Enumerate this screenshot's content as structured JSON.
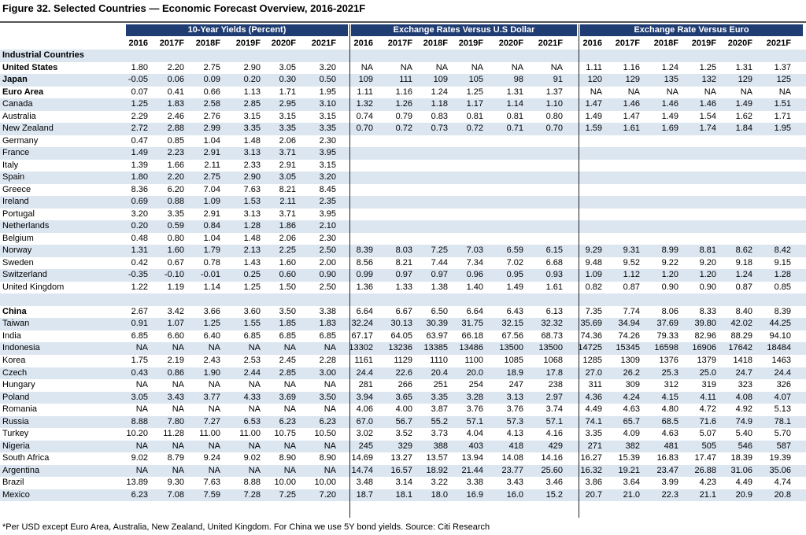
{
  "title": "Figure 32. Selected Countries — Economic Forecast Overview, 2016-2021F",
  "groups": [
    "10-Year Yields (Percent)",
    "Exchange Rates Versus U.S Dollar",
    "Exchange Rate Versus Euro"
  ],
  "years": [
    "2016",
    "2017F",
    "2018F",
    "2019F",
    "2020F",
    "2021F"
  ],
  "rows": [
    {
      "label": "Industrial Countries",
      "bold": true,
      "section": true,
      "values": []
    },
    {
      "label": "United States",
      "bold": true,
      "values": [
        "1.80",
        "2.20",
        "2.75",
        "2.90",
        "3.05",
        "3.20",
        "NA",
        "NA",
        "NA",
        "NA",
        "NA",
        "NA",
        "1.11",
        "1.16",
        "1.24",
        "1.25",
        "1.31",
        "1.37"
      ]
    },
    {
      "label": "Japan",
      "bold": true,
      "values": [
        "-0.05",
        "0.06",
        "0.09",
        "0.20",
        "0.30",
        "0.50",
        "109",
        "111",
        "109",
        "105",
        "98",
        "91",
        "120",
        "129",
        "135",
        "132",
        "129",
        "125"
      ]
    },
    {
      "label": "Euro Area",
      "bold": true,
      "values": [
        "0.07",
        "0.41",
        "0.66",
        "1.13",
        "1.71",
        "1.95",
        "1.11",
        "1.16",
        "1.24",
        "1.25",
        "1.31",
        "1.37",
        "NA",
        "NA",
        "NA",
        "NA",
        "NA",
        "NA"
      ]
    },
    {
      "label": "Canada",
      "values": [
        "1.25",
        "1.83",
        "2.58",
        "2.85",
        "2.95",
        "3.10",
        "1.32",
        "1.26",
        "1.18",
        "1.17",
        "1.14",
        "1.10",
        "1.47",
        "1.46",
        "1.46",
        "1.46",
        "1.49",
        "1.51"
      ]
    },
    {
      "label": "Australia",
      "values": [
        "2.29",
        "2.46",
        "2.76",
        "3.15",
        "3.15",
        "3.15",
        "0.74",
        "0.79",
        "0.83",
        "0.81",
        "0.81",
        "0.80",
        "1.49",
        "1.47",
        "1.49",
        "1.54",
        "1.62",
        "1.71"
      ]
    },
    {
      "label": "New Zealand",
      "values": [
        "2.72",
        "2.88",
        "2.99",
        "3.35",
        "3.35",
        "3.35",
        "0.70",
        "0.72",
        "0.73",
        "0.72",
        "0.71",
        "0.70",
        "1.59",
        "1.61",
        "1.69",
        "1.74",
        "1.84",
        "1.95"
      ]
    },
    {
      "label": "Germany",
      "values": [
        "0.47",
        "0.85",
        "1.04",
        "1.48",
        "2.06",
        "2.30"
      ]
    },
    {
      "label": "France",
      "values": [
        "1.49",
        "2.23",
        "2.91",
        "3.13",
        "3.71",
        "3.95"
      ]
    },
    {
      "label": "Italy",
      "values": [
        "1.39",
        "1.66",
        "2.11",
        "2.33",
        "2.91",
        "3.15"
      ]
    },
    {
      "label": "Spain",
      "values": [
        "1.80",
        "2.20",
        "2.75",
        "2.90",
        "3.05",
        "3.20"
      ]
    },
    {
      "label": "Greece",
      "values": [
        "8.36",
        "6.20",
        "7.04",
        "7.63",
        "8.21",
        "8.45"
      ]
    },
    {
      "label": "Ireland",
      "values": [
        "0.69",
        "0.88",
        "1.09",
        "1.53",
        "2.11",
        "2.35"
      ]
    },
    {
      "label": "Portugal",
      "values": [
        "3.20",
        "3.35",
        "2.91",
        "3.13",
        "3.71",
        "3.95"
      ]
    },
    {
      "label": "Netherlands",
      "values": [
        "0.20",
        "0.59",
        "0.84",
        "1.28",
        "1.86",
        "2.10"
      ]
    },
    {
      "label": "Belgium",
      "values": [
        "0.48",
        "0.80",
        "1.04",
        "1.48",
        "2.06",
        "2.30"
      ]
    },
    {
      "label": "Norway",
      "values": [
        "1.31",
        "1.60",
        "1.79",
        "2.13",
        "2.25",
        "2.50",
        "8.39",
        "8.03",
        "7.25",
        "7.03",
        "6.59",
        "6.15",
        "9.29",
        "9.31",
        "8.99",
        "8.81",
        "8.62",
        "8.42"
      ]
    },
    {
      "label": "Sweden",
      "values": [
        "0.42",
        "0.67",
        "0.78",
        "1.43",
        "1.60",
        "2.00",
        "8.56",
        "8.21",
        "7.44",
        "7.34",
        "7.02",
        "6.68",
        "9.48",
        "9.52",
        "9.22",
        "9.20",
        "9.18",
        "9.15"
      ]
    },
    {
      "label": "Switzerland",
      "values": [
        "-0.35",
        "-0.10",
        "-0.01",
        "0.25",
        "0.60",
        "0.90",
        "0.99",
        "0.97",
        "0.97",
        "0.96",
        "0.95",
        "0.93",
        "1.09",
        "1.12",
        "1.20",
        "1.20",
        "1.24",
        "1.28"
      ]
    },
    {
      "label": "United Kingdom",
      "values": [
        "1.22",
        "1.19",
        "1.14",
        "1.25",
        "1.50",
        "2.50",
        "1.36",
        "1.33",
        "1.38",
        "1.40",
        "1.49",
        "1.61",
        "0.82",
        "0.87",
        "0.90",
        "0.90",
        "0.87",
        "0.85"
      ]
    },
    {
      "label": "",
      "spacer": true,
      "values": []
    },
    {
      "label": "China",
      "bold": true,
      "values": [
        "2.67",
        "3.42",
        "3.66",
        "3.60",
        "3.50",
        "3.38",
        "6.64",
        "6.67",
        "6.50",
        "6.64",
        "6.43",
        "6.13",
        "7.35",
        "7.74",
        "8.06",
        "8.33",
        "8.40",
        "8.39"
      ]
    },
    {
      "label": "Taiwan",
      "values": [
        "0.91",
        "1.07",
        "1.25",
        "1.55",
        "1.85",
        "1.83",
        "32.24",
        "30.13",
        "30.39",
        "31.75",
        "32.15",
        "32.32",
        "35.69",
        "34.94",
        "37.69",
        "39.80",
        "42.02",
        "44.25"
      ]
    },
    {
      "label": "India",
      "values": [
        "6.85",
        "6.60",
        "6.40",
        "6.85",
        "6.85",
        "6.85",
        "67.17",
        "64.05",
        "63.97",
        "66.18",
        "67.56",
        "68.73",
        "74.36",
        "74.26",
        "79.33",
        "82.96",
        "88.29",
        "94.10"
      ]
    },
    {
      "label": "Indonesia",
      "values": [
        "NA",
        "NA",
        "NA",
        "NA",
        "NA",
        "NA",
        "13302",
        "13236",
        "13385",
        "13486",
        "13500",
        "13500",
        "14725",
        "15345",
        "16598",
        "16906",
        "17642",
        "18484"
      ]
    },
    {
      "label": "Korea",
      "values": [
        "1.75",
        "2.19",
        "2.43",
        "2.53",
        "2.45",
        "2.28",
        "1161",
        "1129",
        "1110",
        "1100",
        "1085",
        "1068",
        "1285",
        "1309",
        "1376",
        "1379",
        "1418",
        "1463"
      ]
    },
    {
      "label": "Czech",
      "values": [
        "0.43",
        "0.86",
        "1.90",
        "2.44",
        "2.85",
        "3.00",
        "24.4",
        "22.6",
        "20.4",
        "20.0",
        "18.9",
        "17.8",
        "27.0",
        "26.2",
        "25.3",
        "25.0",
        "24.7",
        "24.4"
      ]
    },
    {
      "label": "Hungary",
      "values": [
        "NA",
        "NA",
        "NA",
        "NA",
        "NA",
        "NA",
        "281",
        "266",
        "251",
        "254",
        "247",
        "238",
        "311",
        "309",
        "312",
        "319",
        "323",
        "326"
      ]
    },
    {
      "label": "Poland",
      "values": [
        "3.05",
        "3.43",
        "3.77",
        "4.33",
        "3.69",
        "3.50",
        "3.94",
        "3.65",
        "3.35",
        "3.28",
        "3.13",
        "2.97",
        "4.36",
        "4.24",
        "4.15",
        "4.11",
        "4.08",
        "4.07"
      ]
    },
    {
      "label": "Romania",
      "values": [
        "NA",
        "NA",
        "NA",
        "NA",
        "NA",
        "NA",
        "4.06",
        "4.00",
        "3.87",
        "3.76",
        "3.76",
        "3.74",
        "4.49",
        "4.63",
        "4.80",
        "4.72",
        "4.92",
        "5.13"
      ]
    },
    {
      "label": "Russia",
      "values": [
        "8.88",
        "7.80",
        "7.27",
        "6.53",
        "6.23",
        "6.23",
        "67.0",
        "56.7",
        "55.2",
        "57.1",
        "57.3",
        "57.1",
        "74.1",
        "65.7",
        "68.5",
        "71.6",
        "74.9",
        "78.1"
      ]
    },
    {
      "label": "Turkey",
      "values": [
        "10.20",
        "11.28",
        "11.00",
        "11.00",
        "10.75",
        "10.50",
        "3.02",
        "3.52",
        "3.73",
        "4.04",
        "4.13",
        "4.16",
        "3.35",
        "4.09",
        "4.63",
        "5.07",
        "5.40",
        "5.70"
      ]
    },
    {
      "label": "Nigeria",
      "values": [
        "NA",
        "NA",
        "NA",
        "NA",
        "NA",
        "NA",
        "245",
        "329",
        "388",
        "403",
        "418",
        "429",
        "271",
        "382",
        "481",
        "505",
        "546",
        "587"
      ]
    },
    {
      "label": "South Africa",
      "values": [
        "9.02",
        "8.79",
        "9.24",
        "9.02",
        "8.90",
        "8.90",
        "14.69",
        "13.27",
        "13.57",
        "13.94",
        "14.08",
        "14.16",
        "16.27",
        "15.39",
        "16.83",
        "17.47",
        "18.39",
        "19.39"
      ]
    },
    {
      "label": "Argentina",
      "values": [
        "NA",
        "NA",
        "NA",
        "NA",
        "NA",
        "NA",
        "14.74",
        "16.57",
        "18.92",
        "21.44",
        "23.77",
        "25.60",
        "16.32",
        "19.21",
        "23.47",
        "26.88",
        "31.06",
        "35.06"
      ]
    },
    {
      "label": "Brazil",
      "values": [
        "13.89",
        "9.30",
        "7.63",
        "8.88",
        "10.00",
        "10.00",
        "3.48",
        "3.14",
        "3.22",
        "3.38",
        "3.43",
        "3.46",
        "3.86",
        "3.64",
        "3.99",
        "4.23",
        "4.49",
        "4.74"
      ]
    },
    {
      "label": "Mexico",
      "values": [
        "6.23",
        "7.08",
        "7.59",
        "7.28",
        "7.25",
        "7.20",
        "18.7",
        "18.1",
        "18.0",
        "16.9",
        "16.0",
        "15.2",
        "20.7",
        "21.0",
        "22.3",
        "21.1",
        "20.9",
        "20.8"
      ]
    }
  ],
  "footnote": "*Per USD except Euro Area, Australia, New Zealand, United Kingdom. For China we use 5Y bond yields. Source: Citi Research"
}
